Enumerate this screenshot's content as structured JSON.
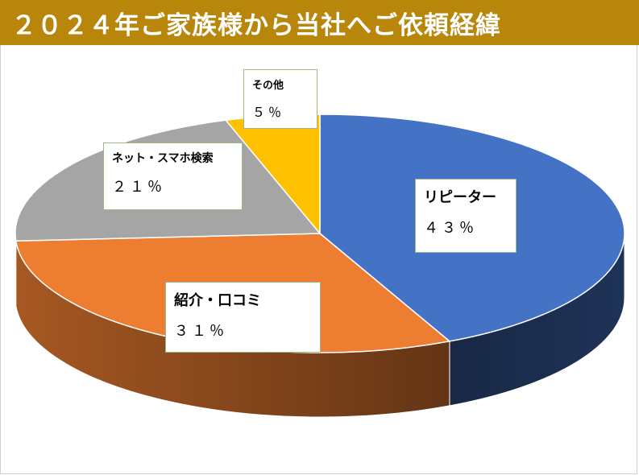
{
  "title": "２０２４年ご家族様から当社へご依頼経緯",
  "colors": {
    "title_bg": "#b8860b",
    "repeater": "#4472c4",
    "referral": "#ed7d31",
    "net": "#a5a5a5",
    "other": "#ffc000"
  },
  "chart_data": {
    "type": "pie",
    "title": "２０２４年ご家族様から当社へご依頼経緯",
    "style": "3d",
    "categories": [
      "リピーター",
      "紹介・口コミ",
      "ネット・スマホ検索",
      "その他"
    ],
    "values": [
      43,
      31,
      21,
      5
    ],
    "labels": [
      "４３％",
      "３１％",
      "２１％",
      "５％"
    ],
    "legend": "none"
  }
}
